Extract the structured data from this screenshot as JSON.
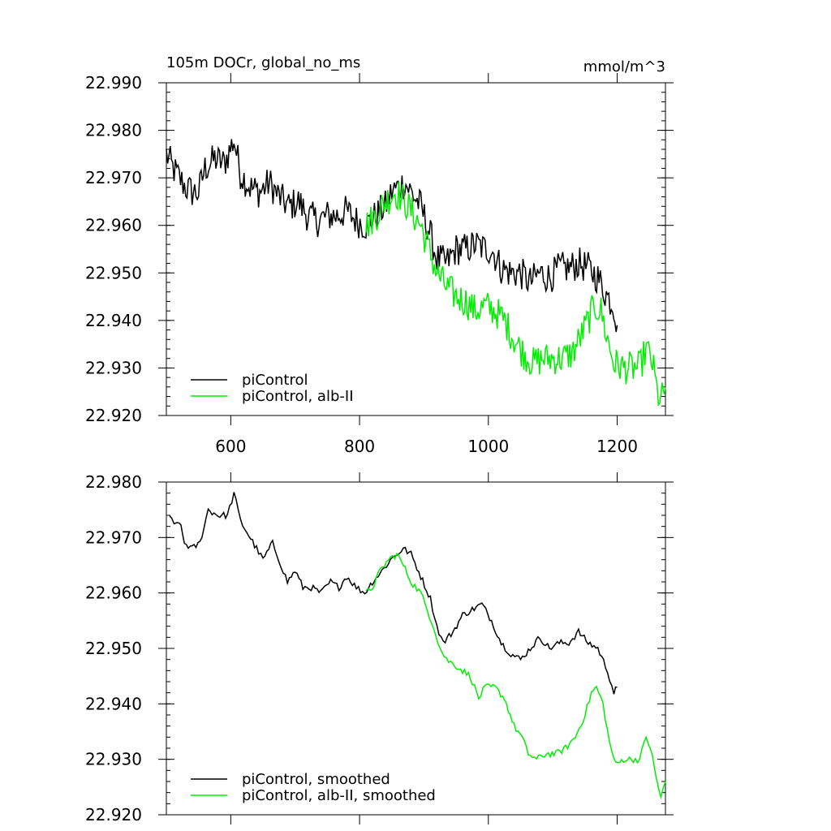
{
  "chart_data": [
    {
      "type": "line",
      "title": "105m DOCr, global_no_ms",
      "units": "mmol/m^3",
      "xlim": [
        500,
        1275
      ],
      "ylim": [
        22.92,
        22.99
      ],
      "x_ticks": [
        "600",
        "800",
        "1000",
        "1200"
      ],
      "y_ticks": [
        "22.920",
        "22.930",
        "22.940",
        "22.950",
        "22.960",
        "22.970",
        "22.980",
        "22.990"
      ],
      "legend": "bottom-left",
      "series": [
        {
          "name": "piControl",
          "color": "#000000",
          "points": [
            [
              500,
              22.975
            ],
            [
              510,
              22.972
            ],
            [
              520,
              22.97
            ],
            [
              530,
              22.968
            ],
            [
              540,
              22.967
            ],
            [
              550,
              22.967
            ],
            [
              560,
              22.972
            ],
            [
              575,
              22.974
            ],
            [
              590,
              22.973
            ],
            [
              605,
              22.978
            ],
            [
              615,
              22.971
            ],
            [
              630,
              22.968
            ],
            [
              645,
              22.967
            ],
            [
              660,
              22.969
            ],
            [
              675,
              22.966
            ],
            [
              690,
              22.964
            ],
            [
              705,
              22.965
            ],
            [
              720,
              22.962
            ],
            [
              735,
              22.961
            ],
            [
              750,
              22.962
            ],
            [
              765,
              22.962
            ],
            [
              780,
              22.963
            ],
            [
              795,
              22.961
            ],
            [
              810,
              22.96
            ],
            [
              825,
              22.962
            ],
            [
              840,
              22.964
            ],
            [
              850,
              22.967
            ],
            [
              860,
              22.968
            ],
            [
              870,
              22.969
            ],
            [
              880,
              22.967
            ],
            [
              895,
              22.964
            ],
            [
              910,
              22.958
            ],
            [
              920,
              22.953
            ],
            [
              935,
              22.952
            ],
            [
              950,
              22.955
            ],
            [
              965,
              22.955
            ],
            [
              980,
              22.956
            ],
            [
              995,
              22.955
            ],
            [
              1005,
              22.955
            ],
            [
              1020,
              22.951
            ],
            [
              1035,
              22.95
            ],
            [
              1050,
              22.95
            ],
            [
              1065,
              22.948
            ],
            [
              1080,
              22.95
            ],
            [
              1095,
              22.949
            ],
            [
              1110,
              22.951
            ],
            [
              1125,
              22.951
            ],
            [
              1140,
              22.952
            ],
            [
              1155,
              22.951
            ],
            [
              1170,
              22.949
            ],
            [
              1185,
              22.945
            ],
            [
              1195,
              22.943
            ],
            [
              1200,
              22.939
            ]
          ]
        },
        {
          "name": "piControl, alb-II",
          "color": "#00ee00",
          "points": [
            [
              810,
              22.96
            ],
            [
              825,
              22.962
            ],
            [
              840,
              22.965
            ],
            [
              855,
              22.967
            ],
            [
              865,
              22.966
            ],
            [
              880,
              22.963
            ],
            [
              895,
              22.96
            ],
            [
              905,
              22.956
            ],
            [
              920,
              22.95
            ],
            [
              935,
              22.947
            ],
            [
              950,
              22.945
            ],
            [
              965,
              22.944
            ],
            [
              980,
              22.942
            ],
            [
              995,
              22.943
            ],
            [
              1010,
              22.942
            ],
            [
              1025,
              22.94
            ],
            [
              1040,
              22.936
            ],
            [
              1055,
              22.933
            ],
            [
              1070,
              22.931
            ],
            [
              1085,
              22.932
            ],
            [
              1100,
              22.932
            ],
            [
              1115,
              22.932
            ],
            [
              1130,
              22.933
            ],
            [
              1145,
              22.937
            ],
            [
              1155,
              22.94
            ],
            [
              1165,
              22.943
            ],
            [
              1175,
              22.942
            ],
            [
              1185,
              22.936
            ],
            [
              1195,
              22.931
            ],
            [
              1210,
              22.93
            ],
            [
              1225,
              22.93
            ],
            [
              1235,
              22.93
            ],
            [
              1245,
              22.934
            ],
            [
              1255,
              22.931
            ],
            [
              1262,
              22.925
            ],
            [
              1268,
              22.923
            ],
            [
              1275,
              22.926
            ]
          ]
        }
      ]
    },
    {
      "type": "line",
      "xlim": [
        500,
        1275
      ],
      "ylim": [
        22.92,
        22.98
      ],
      "y_ticks": [
        "22.920",
        "22.930",
        "22.940",
        "22.950",
        "22.960",
        "22.970",
        "22.980"
      ],
      "legend": "bottom-left",
      "series": [
        {
          "name": "piControl, smoothed",
          "color": "#000000",
          "points": [
            [
              505,
              22.974
            ],
            [
              512,
              22.972
            ],
            [
              520,
              22.973
            ],
            [
              528,
              22.969
            ],
            [
              540,
              22.968
            ],
            [
              552,
              22.969
            ],
            [
              565,
              22.975
            ],
            [
              580,
              22.974
            ],
            [
              595,
              22.974
            ],
            [
              605,
              22.978
            ],
            [
              615,
              22.973
            ],
            [
              625,
              22.971
            ],
            [
              640,
              22.968
            ],
            [
              650,
              22.966
            ],
            [
              665,
              22.969
            ],
            [
              675,
              22.966
            ],
            [
              688,
              22.962
            ],
            [
              700,
              22.964
            ],
            [
              712,
              22.961
            ],
            [
              725,
              22.961
            ],
            [
              740,
              22.96
            ],
            [
              755,
              22.962
            ],
            [
              768,
              22.961
            ],
            [
              780,
              22.963
            ],
            [
              795,
              22.961
            ],
            [
              808,
              22.96
            ],
            [
              820,
              22.962
            ],
            [
              835,
              22.964
            ],
            [
              848,
              22.966
            ],
            [
              858,
              22.967
            ],
            [
              868,
              22.968
            ],
            [
              880,
              22.967
            ],
            [
              895,
              22.963
            ],
            [
              910,
              22.959
            ],
            [
              920,
              22.954
            ],
            [
              930,
              22.951
            ],
            [
              945,
              22.953
            ],
            [
              960,
              22.956
            ],
            [
              975,
              22.957
            ],
            [
              990,
              22.958
            ],
            [
              1005,
              22.955
            ],
            [
              1020,
              22.951
            ],
            [
              1035,
              22.949
            ],
            [
              1050,
              22.948
            ],
            [
              1065,
              22.95
            ],
            [
              1080,
              22.952
            ],
            [
              1095,
              22.95
            ],
            [
              1110,
              22.951
            ],
            [
              1125,
              22.951
            ],
            [
              1140,
              22.953
            ],
            [
              1155,
              22.951
            ],
            [
              1170,
              22.95
            ],
            [
              1185,
              22.946
            ],
            [
              1195,
              22.942
            ],
            [
              1200,
              22.943
            ]
          ]
        },
        {
          "name": "piControl, alb-II, smoothed",
          "color": "#00ee00",
          "points": [
            [
              810,
              22.96
            ],
            [
              820,
              22.961
            ],
            [
              832,
              22.964
            ],
            [
              845,
              22.966
            ],
            [
              858,
              22.967
            ],
            [
              868,
              22.965
            ],
            [
              880,
              22.962
            ],
            [
              895,
              22.96
            ],
            [
              905,
              22.957
            ],
            [
              915,
              22.954
            ],
            [
              925,
              22.95
            ],
            [
              935,
              22.948
            ],
            [
              948,
              22.947
            ],
            [
              960,
              22.946
            ],
            [
              972,
              22.945
            ],
            [
              985,
              22.941
            ],
            [
              995,
              22.943
            ],
            [
              1010,
              22.943
            ],
            [
              1025,
              22.941
            ],
            [
              1040,
              22.936
            ],
            [
              1052,
              22.934
            ],
            [
              1062,
              22.931
            ],
            [
              1075,
              22.93
            ],
            [
              1090,
              22.931
            ],
            [
              1105,
              22.931
            ],
            [
              1120,
              22.932
            ],
            [
              1135,
              22.934
            ],
            [
              1150,
              22.938
            ],
            [
              1160,
              22.942
            ],
            [
              1168,
              22.943
            ],
            [
              1178,
              22.94
            ],
            [
              1188,
              22.933
            ],
            [
              1198,
              22.929
            ],
            [
              1210,
              22.93
            ],
            [
              1225,
              22.93
            ],
            [
              1235,
              22.93
            ],
            [
              1245,
              22.934
            ],
            [
              1252,
              22.932
            ],
            [
              1260,
              22.927
            ],
            [
              1268,
              22.923
            ],
            [
              1275,
              22.926
            ]
          ]
        }
      ]
    }
  ]
}
